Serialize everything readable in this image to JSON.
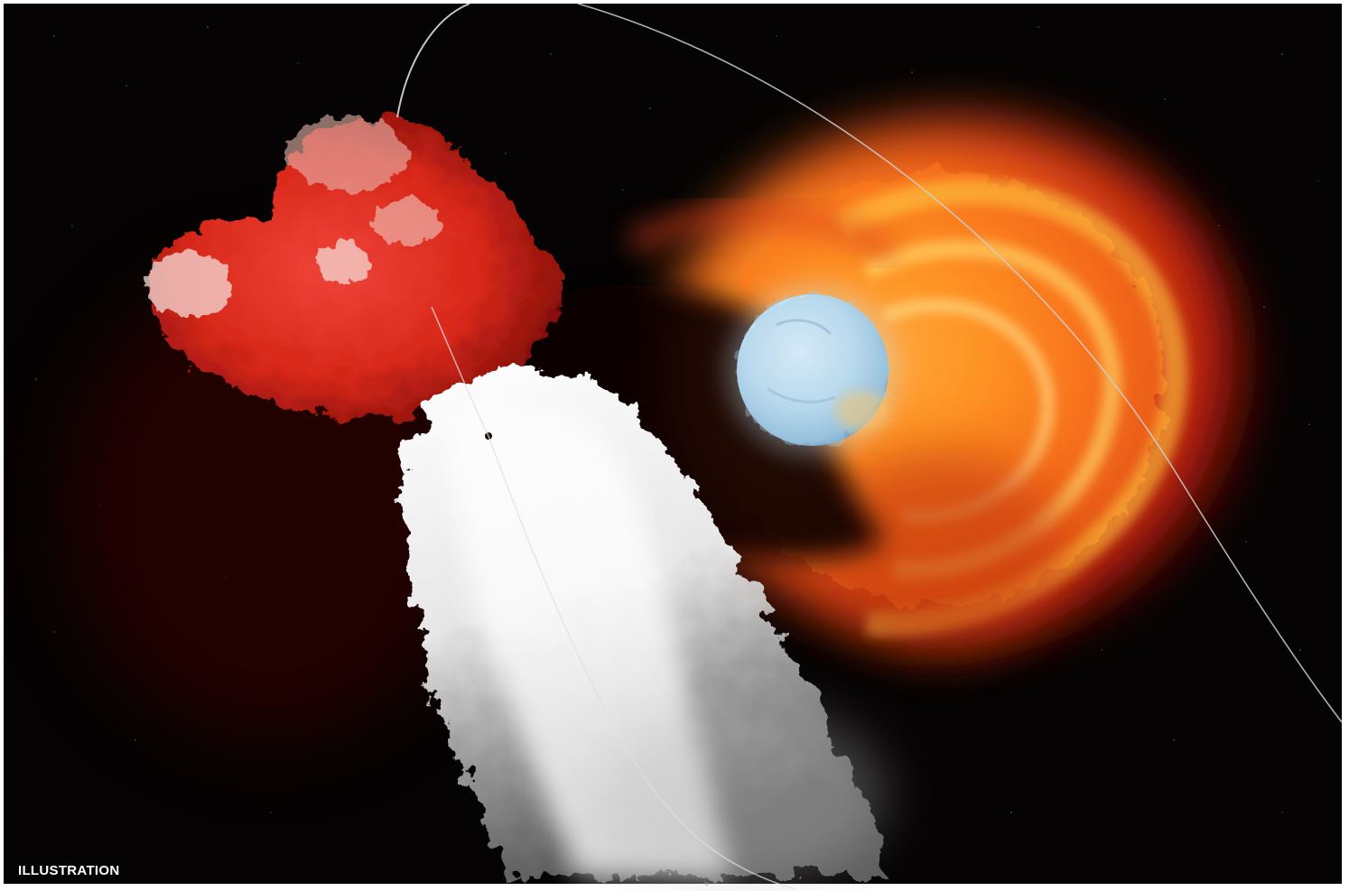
{
  "image": {
    "caption": "ILLUSTRATION",
    "colors": {
      "space": "#050303",
      "red_cloud": "#d8281a",
      "swirl_orange": "#ff8a1e",
      "swirl_yellow": "#ffd040",
      "star_blue": "#bfe0f2",
      "white_plume": "#f2f2f2"
    }
  }
}
